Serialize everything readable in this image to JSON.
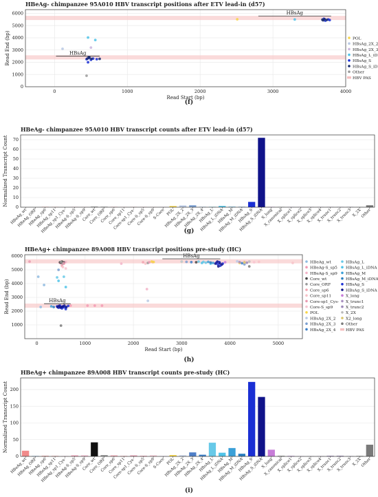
{
  "chart_data": [
    {
      "type": "scatter",
      "title": "HBeAg- chimpanzee 95A010 HBV transcript positions after ETV lead-in (d57)",
      "xlabel": "Read Start (bp)",
      "ylabel": "Read End (bp)",
      "xlim": [
        -400,
        4000
      ],
      "ylim": [
        0,
        6300
      ],
      "xticks": [
        0,
        1000,
        2000,
        3000,
        4000
      ],
      "yticks": [
        0,
        1000,
        2000,
        3000,
        4000,
        5000,
        6000
      ],
      "grid": true,
      "legend_position": "right",
      "pas_bands": [
        2400,
        5620
      ],
      "annotations": [
        {
          "text": "HBsAg",
          "x": [
            20,
            620
          ],
          "y": 2500
        },
        {
          "text": "HBsAg",
          "x": [
            2800,
            3800
          ],
          "y": 5780
        }
      ],
      "series": [
        {
          "name": "POL",
          "color": "#f7d548",
          "points": [
            [
              2510,
              5510
            ]
          ]
        },
        {
          "name": "HBsAg_2X_2",
          "color": "#b9c9e4",
          "points": [
            [
              110,
              3100
            ]
          ]
        },
        {
          "name": "HBsAg_2X_3",
          "color": "#c9b6dd",
          "points": [
            [
              500,
              3200
            ]
          ]
        },
        {
          "name": "HBsAg_L_iDNA",
          "color": "#4fc3e8",
          "points": [
            [
              460,
              4020
            ],
            [
              560,
              3820
            ],
            [
              3300,
              5500
            ]
          ]
        },
        {
          "name": "HBsAg_S",
          "color": "#1a2fd4",
          "points": [
            [
              440,
              2250
            ],
            [
              470,
              2350
            ],
            [
              500,
              2200
            ],
            [
              530,
              2300
            ],
            [
              460,
              2000
            ],
            [
              580,
              2250
            ],
            [
              3700,
              5550
            ],
            [
              3720,
              5400
            ],
            [
              3760,
              5500
            ],
            [
              3780,
              5450
            ]
          ]
        },
        {
          "name": "HBsAg_S_iDNA",
          "color": "#162a6e",
          "points": [
            [
              450,
              2300
            ],
            [
              480,
              2380
            ],
            [
              510,
              2280
            ],
            [
              470,
              2420
            ],
            [
              620,
              2280
            ],
            [
              3680,
              5480
            ],
            [
              3710,
              5520
            ],
            [
              3740,
              5460
            ],
            [
              3690,
              5430
            ]
          ]
        },
        {
          "name": "Other",
          "color": "#9a9a9a",
          "points": [
            [
              440,
              900
            ]
          ]
        },
        {
          "name": "HBV PAS",
          "color": "#f5c0c0",
          "points": []
        }
      ]
    },
    {
      "type": "bar",
      "title": "HBeAg- chimpanzee 95A010 HBV transcript counts after ETV lead-in (d57)",
      "xlabel": "",
      "ylabel": "Normalized Transcript Count",
      "ylim": [
        0,
        75
      ],
      "yticks": [
        0,
        10,
        20,
        30,
        40,
        50,
        60,
        70
      ],
      "grid": true,
      "categories": [
        "HBeAg_wt",
        "HBeAg_ORF",
        "HBeAg_sp6",
        "HBeAg_sp11",
        "HBeAg_sp1_Cys-",
        "HBeAg-S_sp5",
        "HBeAg-S_sp9",
        "Core_wt",
        "Core_ORF",
        "Core_sp6",
        "Core_sp11",
        "Core-sp1_Cys-",
        "Core-S_sp5",
        "Core-S_sp9",
        "S-Core",
        "POL",
        "HBsAg_2X_2",
        "HBsAg_2X_3",
        "HBsAg_2X_4",
        "HBsAg_L",
        "HBsAg_L_iDNA",
        "HBsAg_M",
        "HBsAg_M_iDNA",
        "HBsAg_S",
        "HBsAg_S_iDNA",
        "X_long",
        "X_canonical",
        "X_splice1",
        "X_splice2",
        "X_splice3",
        "X_splice4",
        "X_trunc1",
        "X_trunc2",
        "X_trunc3",
        "X_2X",
        "Other"
      ],
      "values": [
        0,
        0,
        0.4,
        0.4,
        0,
        0.3,
        0.3,
        0.5,
        0.5,
        0.4,
        0.3,
        0.3,
        0.3,
        0.3,
        0.2,
        1.2,
        1.8,
        2,
        0.3,
        0.4,
        1.3,
        0.5,
        0.4,
        5.5,
        72,
        0.3,
        0.3,
        0.3,
        0.3,
        0.3,
        0.3,
        0.3,
        0.3,
        0.3,
        0.3,
        2
      ],
      "colors": [
        "#8fbbe0",
        "#c5dcf0",
        "#f4a6a6",
        "#f7c6c6",
        "#e08fb8",
        "#f29ab4",
        "#f2b4c8",
        "#555555",
        "#999999",
        "#f2a3b0",
        "#f7c2c8",
        "#e99ab0",
        "#f4a6b8",
        "#f7c4d0",
        "#c9a0dc",
        "#f7d548",
        "#b9c9e4",
        "#7b9fd0",
        "#3d80c8",
        "#67c9e8",
        "#4fc3e8",
        "#3aa0d8",
        "#2b7fc0",
        "#1a2fd4",
        "#10138a",
        "#c77dd8",
        "#9a9a9a",
        "#d0b0e0",
        "#c9a8d8",
        "#bfa0d0",
        "#b598c8",
        "#a890c0",
        "#9c88b8",
        "#9080b0",
        "#bbbbbb",
        "#7a7a7a"
      ]
    },
    {
      "type": "scatter",
      "title": "HBeAg+ chimpanzee 89A008 HBV transcript positions pre-study (HC)",
      "xlabel": "Read Start (bp)",
      "ylabel": "Read End (bp)",
      "xlim": [
        -250,
        5500
      ],
      "ylim": [
        0,
        6100
      ],
      "xticks": [
        0,
        1000,
        2000,
        3000,
        4000,
        5000
      ],
      "yticks": [
        1000,
        2000,
        3000,
        4000,
        5000,
        6000
      ],
      "grid": true,
      "legend_position": "right",
      "pas_bands": [
        2400,
        5620
      ],
      "annotations": [
        {
          "text": "HBsAg",
          "x": [
            150,
            700
          ],
          "y": 2540
        },
        {
          "text": "HBsAg",
          "x": [
            2600,
            3800
          ],
          "y": 5800
        }
      ],
      "legend_left": [
        "HBeAg_wt",
        "HBeAg-S_sp5",
        "HBeAg-S_sp9",
        "Core_wt",
        "Core_ORF",
        "Core_sp6",
        "Core_sp11",
        "Core-sp1_Cys-",
        "Core-S_sp9",
        "POL",
        "HBsAg_2X_2",
        "HBsAg_2X_3",
        "HBsAg_2X_4"
      ],
      "legend_right": [
        "HBsAg_L",
        "HBsAg_L_iDNA",
        "HBsAg_M",
        "HBsAg_M_iDNA",
        "HBsAg_S",
        "HBsAg_S_iDNA",
        "X_long",
        "X_trunc1",
        "X_trunc2",
        "X_2X",
        "X2_long",
        "Other",
        "HBV PAS"
      ],
      "series": [
        {
          "name": "HBeAg_wt",
          "color": "#8fbbe0",
          "points": [
            [
              30,
              4500
            ],
            [
              150,
              3900
            ],
            [
              80,
              2300
            ]
          ]
        },
        {
          "name": "HBeAg-S_sp5",
          "color": "#f29ab4",
          "points": [
            [
              480,
              5500
            ],
            [
              560,
              5450
            ],
            [
              700,
              2400
            ],
            [
              1050,
              2400
            ],
            [
              1200,
              2400
            ],
            [
              1350,
              2400
            ]
          ]
        },
        {
          "name": "HBeAg-S_sp9",
          "color": "#f2b4c8",
          "points": [
            [
              520,
              5400
            ],
            [
              600,
              5560
            ],
            [
              1750,
              5450
            ],
            [
              2280,
              3600
            ]
          ]
        },
        {
          "name": "Core_wt",
          "color": "#444444",
          "points": [
            [
              480,
              5550
            ],
            [
              500,
              5520
            ],
            [
              520,
              5600
            ],
            [
              560,
              5540
            ],
            [
              3300,
              5550
            ]
          ]
        },
        {
          "name": "Core_ORF",
          "color": "#999999",
          "points": [
            [
              500,
              5580
            ],
            [
              540,
              5460
            ],
            [
              2300,
              5500
            ]
          ]
        },
        {
          "name": "Core_sp6",
          "color": "#f2a3b0",
          "points": [
            [
              520,
              5300
            ],
            [
              2200,
              5550
            ],
            [
              2400,
              5560
            ]
          ]
        },
        {
          "name": "Core_sp11",
          "color": "#f7c2c8",
          "points": [
            [
              540,
              5200
            ],
            [
              2250,
              5450
            ],
            [
              4600,
              5580
            ],
            [
              5300,
              5500
            ]
          ]
        },
        {
          "name": "Core-sp1_Cys-",
          "color": "#e99ab0",
          "points": [
            [
              560,
              5480
            ],
            [
              -150,
              5600
            ],
            [
              2330,
              5550
            ]
          ]
        },
        {
          "name": "Core-S_sp9",
          "color": "#f7c4d0",
          "points": [
            [
              600,
              5100
            ],
            [
              4300,
              5600
            ],
            [
              4500,
              5550
            ]
          ]
        },
        {
          "name": "POL",
          "color": "#f7d548",
          "points": [
            [
              2380,
              5600
            ],
            [
              2420,
              5570
            ],
            [
              3000,
              5600
            ],
            [
              4200,
              5500
            ]
          ]
        },
        {
          "name": "HBsAg_2X_2",
          "color": "#b9c9e4",
          "points": [
            [
              2300,
              2750
            ],
            [
              3000,
              5600
            ],
            [
              4150,
              5620
            ]
          ]
        },
        {
          "name": "HBsAg_2X_3",
          "color": "#7b9fd0",
          "points": [
            [
              450,
              5000
            ],
            [
              3100,
              5580
            ],
            [
              4300,
              5400
            ]
          ]
        },
        {
          "name": "HBsAg_2X_4",
          "color": "#3d80c8",
          "points": [
            [
              3200,
              5560
            ],
            [
              4250,
              5480
            ]
          ]
        },
        {
          "name": "HBsAg_L",
          "color": "#67c9e8",
          "points": [
            [
              420,
              4450
            ],
            [
              560,
              4500
            ],
            [
              3350,
              5600
            ],
            [
              3500,
              5520
            ],
            [
              3450,
              5580
            ]
          ]
        },
        {
          "name": "HBsAg_L_iDNA",
          "color": "#4fc3e8",
          "points": [
            [
              450,
              4200
            ],
            [
              600,
              3750
            ],
            [
              3420,
              5500
            ],
            [
              3600,
              5450
            ]
          ]
        },
        {
          "name": "HBsAg_M",
          "color": "#3aa0d8",
          "points": [
            [
              300,
              2350
            ],
            [
              600,
              2300
            ],
            [
              3550,
              5580
            ],
            [
              3650,
              5500
            ]
          ]
        },
        {
          "name": "HBsAg_M_iDNA",
          "color": "#2b7fc0",
          "points": [
            [
              350,
              2300
            ],
            [
              3600,
              5530
            ]
          ]
        },
        {
          "name": "HBsAg_S",
          "color": "#1a2fd4",
          "points": [
            [
              420,
              2350
            ],
            [
              450,
              2250
            ],
            [
              480,
              2400
            ],
            [
              500,
              2300
            ],
            [
              520,
              2200
            ],
            [
              540,
              2350
            ],
            [
              560,
              2280
            ],
            [
              600,
              2150
            ],
            [
              650,
              2380
            ],
            [
              3720,
              5520
            ],
            [
              3750,
              5400
            ],
            [
              3780,
              5560
            ],
            [
              3800,
              5300
            ],
            [
              3850,
              5450
            ]
          ]
        },
        {
          "name": "HBsAg_S_iDNA",
          "color": "#10138a",
          "points": [
            [
              430,
              2300
            ],
            [
              460,
              2380
            ],
            [
              490,
              2260
            ],
            [
              530,
              2320
            ],
            [
              570,
              2400
            ],
            [
              610,
              2290
            ],
            [
              3700,
              5450
            ],
            [
              3740,
              5600
            ],
            [
              3790,
              5480
            ],
            [
              3830,
              5380
            ],
            [
              3760,
              5250
            ]
          ]
        },
        {
          "name": "X_long",
          "color": "#c77dd8",
          "points": [
            [
              3900,
              5550
            ]
          ]
        },
        {
          "name": "X_trunc1",
          "color": "#a890c0",
          "points": [
            [
              4200,
              5560
            ]
          ]
        },
        {
          "name": "X_trunc2",
          "color": "#9c88b8",
          "points": [
            [
              4350,
              5520
            ]
          ]
        },
        {
          "name": "X_2X",
          "color": "#bbbbbb",
          "points": [
            [
              4400,
              5600
            ]
          ]
        },
        {
          "name": "X2_long",
          "color": "#d9c46a",
          "points": [
            [
              4300,
              5540
            ]
          ]
        },
        {
          "name": "Other",
          "color": "#7a7a7a",
          "points": [
            [
              500,
              950
            ],
            [
              4400,
              5250
            ]
          ]
        },
        {
          "name": "HBV PAS",
          "color": "#f5c0c0",
          "points": []
        }
      ]
    },
    {
      "type": "bar",
      "title": "HBeAg+ chimpanzee 89A008 HBV transcript counts pre-study (HC)",
      "xlabel": "",
      "ylabel": "Normalized Transcript Count",
      "ylim": [
        0,
        235
      ],
      "yticks": [
        0,
        50,
        100,
        150,
        200
      ],
      "grid": true,
      "categories": [
        "HBeAg_wt",
        "HBeAg_ORF",
        "HBeAg_sp6",
        "HBeAg_sp11",
        "HBeAg_sp1_Cys-",
        "HBeAg-S_sp5",
        "HBeAg-S_sp9",
        "Core_wt",
        "Core_ORF",
        "Core_sp6",
        "Core_sp11",
        "Core-sp1_Cys-",
        "Core-S_sp5",
        "Core-S_sp9",
        "S-Core",
        "POL",
        "HBsAg_2X_2",
        "HBsAg_2X_3",
        "HBsAg_2X_4",
        "HBsAg_L",
        "HBsAg_L_iDNA",
        "HBsAg_M",
        "HBsAg_M_iDNA",
        "HBsAg_S",
        "HBsAg_S_iDNA",
        "X_long",
        "X_canonical",
        "X_splice1",
        "X_splice2",
        "X_splice3",
        "X_splice4",
        "X_trunc1",
        "X_trunc2",
        "X_trunc3",
        "X_2X",
        "Other"
      ],
      "values": [
        17,
        2,
        2,
        2,
        1,
        3,
        3,
        42,
        4,
        3,
        2,
        3,
        2,
        3,
        1,
        4,
        3,
        12,
        5,
        41,
        11,
        25,
        8,
        223,
        178,
        20,
        2,
        2,
        1,
        1,
        1,
        2,
        2,
        1,
        2,
        35
      ],
      "colors": [
        "#f08a8a",
        "#c5dcf0",
        "#f4a6a6",
        "#f7c6c6",
        "#e08fb8",
        "#f29ab4",
        "#f2b4c8",
        "#111111",
        "#999999",
        "#f2a3b0",
        "#f7c2c8",
        "#e99ab0",
        "#f4a6b8",
        "#f7c4d0",
        "#c9a0dc",
        "#f7d548",
        "#b9c9e4",
        "#4f7fc8",
        "#3d80c8",
        "#67c9e8",
        "#4fc3e8",
        "#3aa0d8",
        "#2b7fc0",
        "#1a2fd4",
        "#10138a",
        "#c77dd8",
        "#9a9a9a",
        "#d0b0e0",
        "#c9a8d8",
        "#bfa0d0",
        "#b598c8",
        "#a890c0",
        "#9c88b8",
        "#9080b0",
        "#bbbbbb",
        "#7a7a7a"
      ]
    }
  ],
  "captions": [
    "(f)",
    "(g)",
    "(h)",
    "(i)"
  ]
}
